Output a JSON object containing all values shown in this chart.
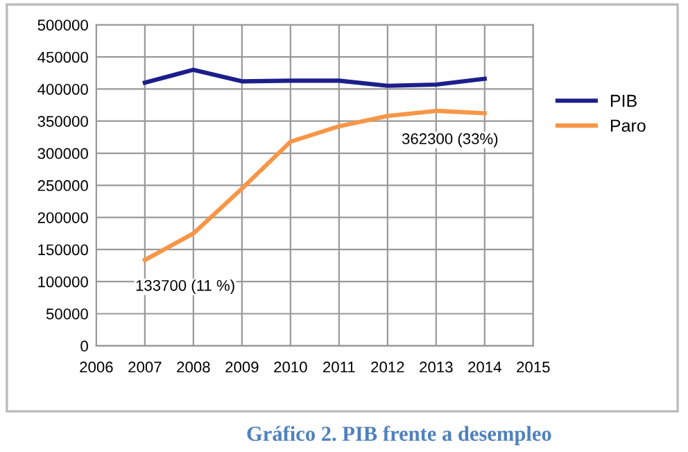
{
  "chart_data": {
    "type": "line",
    "title": "Gráfico 2. PIB frente a desempleo",
    "x": [
      2007,
      2008,
      2009,
      2010,
      2011,
      2012,
      2013,
      2014
    ],
    "series": [
      {
        "name": "PIB",
        "color": "#1c1f8a",
        "values": [
          410000,
          430000,
          412000,
          413000,
          413000,
          405000,
          407000,
          416000
        ]
      },
      {
        "name": "Paro",
        "color": "#f79646",
        "values": [
          133700,
          175000,
          245000,
          318000,
          342000,
          358000,
          366000,
          362300
        ]
      }
    ],
    "annotations": [
      {
        "text": "133700 (11 %)",
        "x": 2007,
        "y": 133700
      },
      {
        "text": "362300 (33%)",
        "x": 2014,
        "y": 362300
      }
    ],
    "xlim": [
      2006,
      2015
    ],
    "xticks": [
      2006,
      2007,
      2008,
      2009,
      2010,
      2011,
      2012,
      2013,
      2014,
      2015
    ],
    "ylim": [
      0,
      500000
    ],
    "yticks": [
      0,
      50000,
      100000,
      150000,
      200000,
      250000,
      300000,
      350000,
      400000,
      450000,
      500000
    ],
    "grid": true,
    "legend": "right",
    "marker": "none",
    "line_style": "solid"
  }
}
